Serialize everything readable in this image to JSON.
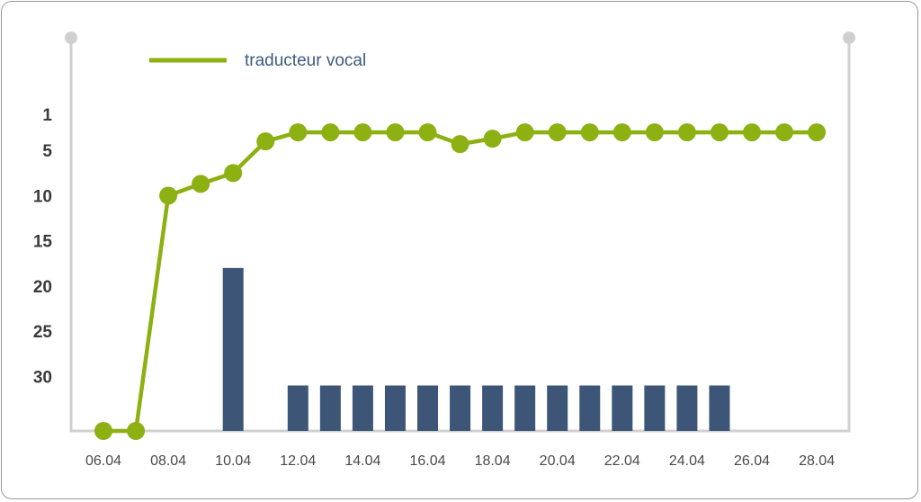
{
  "chart_data": {
    "type": "line",
    "title": "",
    "xlabel": "",
    "ylabel": "",
    "y_reversed": true,
    "yticks": [
      1,
      5,
      10,
      15,
      20,
      25,
      30
    ],
    "x": [
      "06.04",
      "07.04",
      "08.04",
      "09.04",
      "10.04",
      "11.04",
      "12.04",
      "13.04",
      "14.04",
      "15.04",
      "16.04",
      "17.04",
      "18.04",
      "19.04",
      "20.04",
      "21.04",
      "22.04",
      "23.04",
      "24.04",
      "25.04",
      "26.04",
      "27.04",
      "28.04"
    ],
    "x_tick_labels": [
      "06.04",
      "08.04",
      "10.04",
      "12.04",
      "14.04",
      "16.04",
      "18.04",
      "20.04",
      "22.04",
      "24.04",
      "26.04",
      "28.04"
    ],
    "legend_position": "top-left",
    "series": [
      {
        "name": "traducteur vocal",
        "kind": "line",
        "color": "#8db012",
        "values": [
          null,
          null,
          10,
          8.7,
          7.5,
          4,
          3,
          3,
          3,
          3,
          3,
          4.3,
          3.7,
          3,
          3,
          3,
          3,
          3,
          3,
          3,
          3,
          3,
          3
        ],
        "offchart_values_marker": "below-axis"
      },
      {
        "kind": "bar",
        "color": "#3d5677",
        "values": [
          null,
          null,
          null,
          null,
          18,
          null,
          31,
          31,
          31,
          31,
          31,
          31,
          31,
          31,
          31,
          31,
          31,
          31,
          31,
          31,
          null,
          null,
          null
        ]
      }
    ],
    "axis_color": "#d0d0d0"
  }
}
